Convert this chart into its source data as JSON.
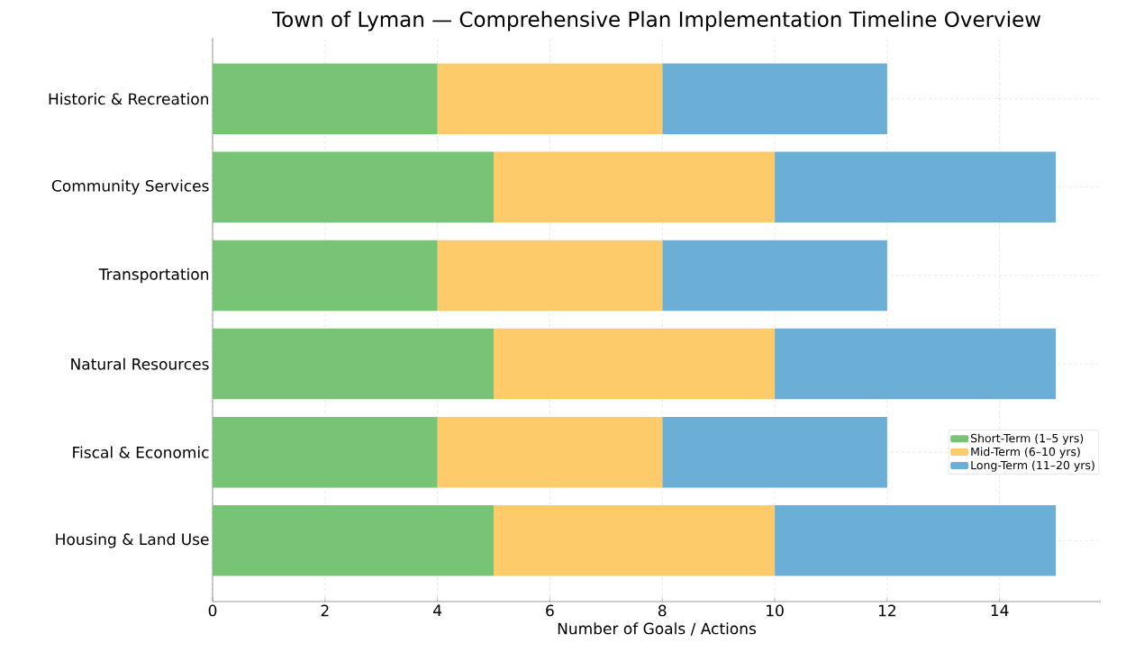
{
  "chart_data": {
    "type": "bar",
    "orientation": "horizontal",
    "stacked": true,
    "title": "Town of Lyman — Comprehensive Plan Implementation Timeline Overview",
    "xlabel": "Number of Goals / Actions",
    "categories": [
      "Historic & Recreation",
      "Community Services",
      "Transportation",
      "Natural Resources",
      "Fiscal & Economic",
      "Housing & Land Use"
    ],
    "series": [
      {
        "name": "Short-Term (1–5 yrs)",
        "color": "#77c476",
        "values": [
          4,
          5,
          4,
          5,
          4,
          5
        ]
      },
      {
        "name": "Mid-Term (6–10 yrs)",
        "color": "#fecb6a",
        "values": [
          4,
          5,
          4,
          5,
          4,
          5
        ]
      },
      {
        "name": "Long-Term (11–20 yrs)",
        "color": "#6baed6",
        "values": [
          4,
          5,
          4,
          5,
          4,
          5
        ]
      }
    ],
    "xlim": [
      0,
      15.8
    ],
    "xticks": [
      0,
      2,
      4,
      6,
      8,
      10,
      12,
      14
    ],
    "grid": true,
    "legend": "right"
  }
}
